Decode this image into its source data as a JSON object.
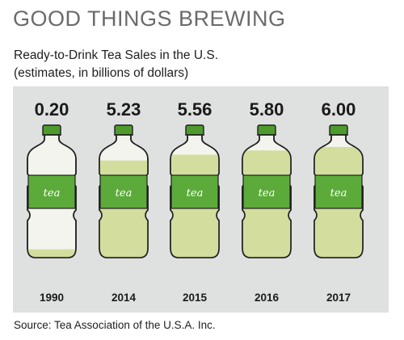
{
  "header": {
    "title": "GOOD THINGS BREWING",
    "subtitle_line1": "Ready-to-Drink Tea Sales in the U.S.",
    "subtitle_line2": "(estimates, in billions of dollars)"
  },
  "footer": {
    "source": "Source: Tea Association of the U.S.A. Inc."
  },
  "colors": {
    "panel": "#dfe0e0",
    "cap": "#4e9a2d",
    "label": "#5cab3a",
    "tea": "#d3dd9e",
    "bottle": "#f3f4ee"
  },
  "chart_data": {
    "type": "bar",
    "title": "Ready-to-Drink Tea Sales in the U.S.",
    "subtitle": "(estimates, in billions of dollars)",
    "categories": [
      "1990",
      "2014",
      "2015",
      "2016",
      "2017"
    ],
    "values": [
      0.2,
      5.23,
      5.56,
      5.8,
      6.0
    ],
    "value_labels": [
      "0.20",
      "5.23",
      "5.56",
      "5.80",
      "6.00"
    ],
    "bottle_label": "tea",
    "xlabel": "",
    "ylabel": "",
    "ylim": [
      0,
      6.5
    ],
    "grid": false,
    "legend": "none"
  }
}
